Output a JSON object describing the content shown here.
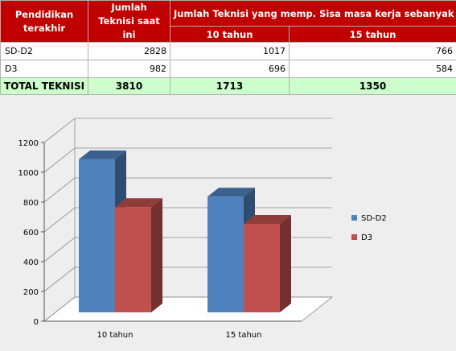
{
  "table": {
    "headers": {
      "col1": "Pendidikan terakhir",
      "col2": "Jumlah Teknisi saat ini",
      "col3": "Jumlah Teknisi yang memp. Sisa masa kerja sebanyak",
      "sub1": "10 tahun",
      "sub2": "15 tahun"
    },
    "rows": [
      {
        "category": "SD-D2",
        "current": "2828",
        "y10": "1017",
        "y15": "766"
      },
      {
        "category": "D3",
        "current": "982",
        "y10": "696",
        "y15": "584"
      }
    ],
    "total": {
      "label": "TOTAL TEKNISI",
      "current": "3810",
      "y10": "1713",
      "y15": "1350"
    }
  },
  "chart_data": {
    "type": "bar",
    "categories": [
      "10 tahun",
      "15 tahun"
    ],
    "series": [
      {
        "name": "SD-D2",
        "values": [
          1017,
          766
        ],
        "color": "#4f81bd"
      },
      {
        "name": "D3",
        "values": [
          696,
          584
        ],
        "color": "#c0504d"
      }
    ],
    "ylim": [
      0,
      1200
    ],
    "yticks": [
      0,
      200,
      400,
      600,
      800,
      1000,
      1200
    ],
    "grid": true,
    "legend": "right",
    "style": "3d-clustered-column"
  }
}
